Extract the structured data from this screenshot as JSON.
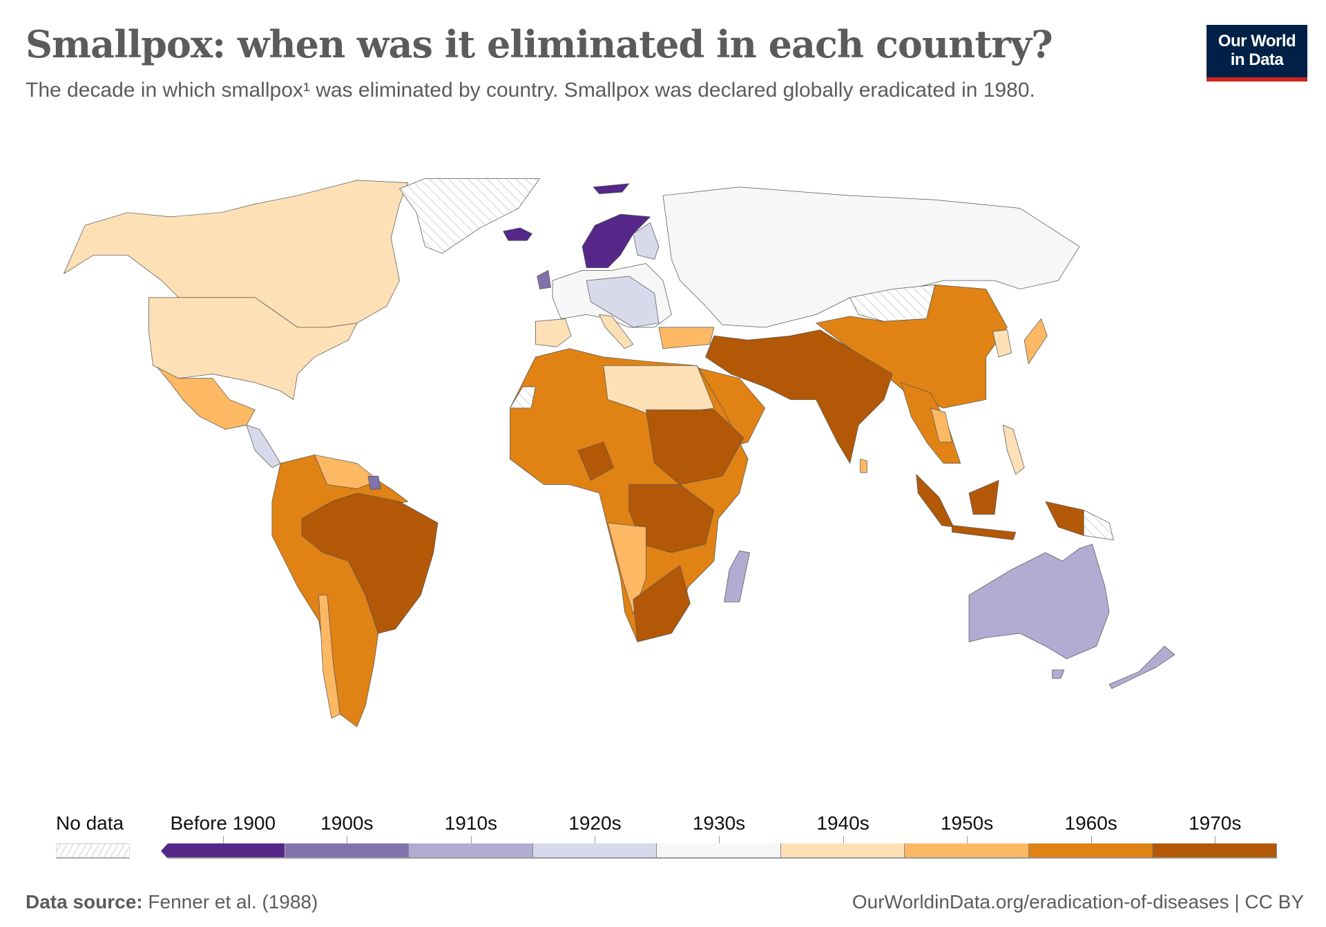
{
  "header": {
    "title": "Smallpox: when was it eliminated in each country?",
    "subtitle": "The decade in which smallpox¹ was eliminated by country. Smallpox was declared globally eradicated in 1980.",
    "logo_line1": "Our World",
    "logo_line2": "in Data"
  },
  "chart_data": {
    "type": "choropleth",
    "title": "Smallpox: when was it eliminated in each country?",
    "legend": {
      "no_data_label": "No data",
      "bins": [
        {
          "label": "Before 1900",
          "color": "#542788"
        },
        {
          "label": "1900s",
          "color": "#8073ac"
        },
        {
          "label": "1910s",
          "color": "#b2abd2"
        },
        {
          "label": "1920s",
          "color": "#d8daeb"
        },
        {
          "label": "1930s",
          "color": "#f7f7f7"
        },
        {
          "label": "1940s",
          "color": "#fee0b6"
        },
        {
          "label": "1950s",
          "color": "#fdb863"
        },
        {
          "label": "1960s",
          "color": "#e08214"
        },
        {
          "label": "1970s",
          "color": "#b35806"
        }
      ]
    }
  },
  "footer": {
    "source_label": "Data source:",
    "source_value": "Fenner et al. (1988)",
    "url": "OurWorldinData.org/eradication-of-diseases | CC BY"
  }
}
